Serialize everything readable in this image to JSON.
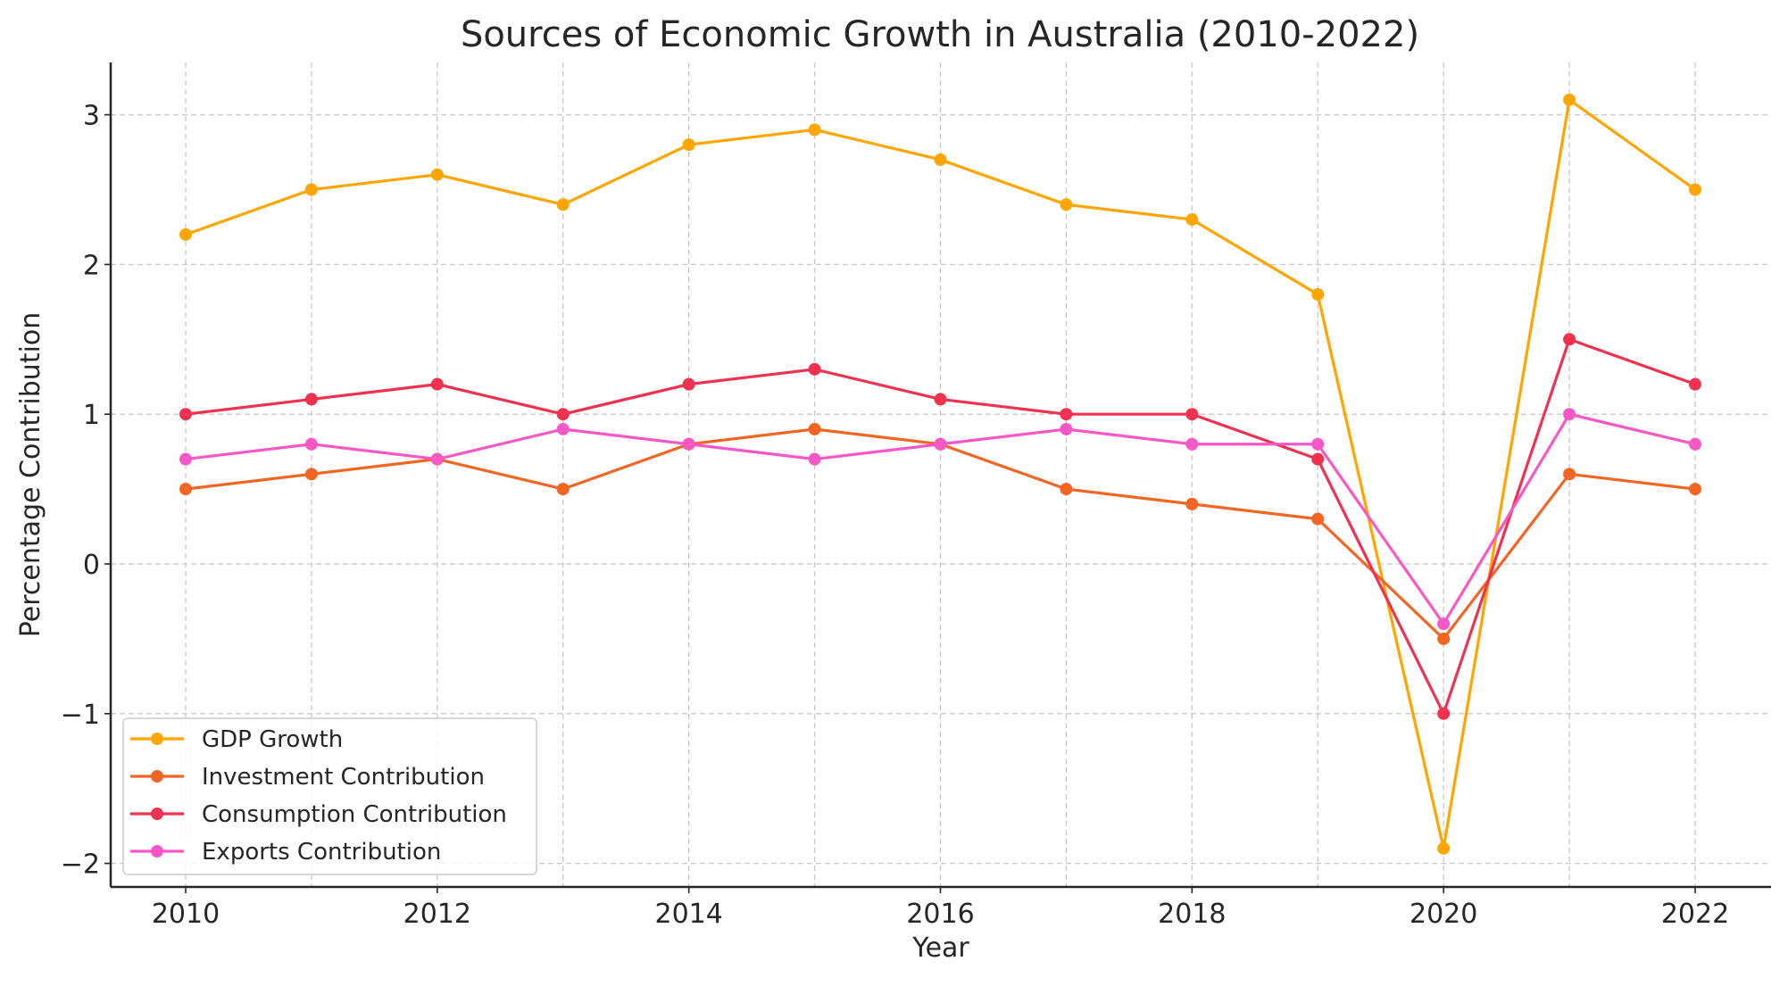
{
  "chart_data": {
    "type": "line",
    "title": "Sources of Economic Growth in Australia (2010-2022)",
    "xlabel": "Year",
    "ylabel": "Percentage Contribution",
    "x": [
      2010,
      2011,
      2012,
      2013,
      2014,
      2015,
      2016,
      2017,
      2018,
      2019,
      2020,
      2021,
      2022
    ],
    "xticks": [
      "2010",
      "2012",
      "2014",
      "2016",
      "2018",
      "2020",
      "2022"
    ],
    "yticks": [
      "−2",
      "−1",
      "0",
      "1",
      "2",
      "3"
    ],
    "xlim": [
      2009.38,
      2022.6
    ],
    "ylim": [
      -2.15,
      3.35
    ],
    "grid": true,
    "legend_position": "lower-left",
    "series": [
      {
        "name": "GDP Growth",
        "color": "#FFA500",
        "values": [
          2.2,
          2.5,
          2.6,
          2.4,
          2.8,
          2.9,
          2.7,
          2.4,
          2.3,
          1.8,
          -1.9,
          3.1,
          2.5
        ]
      },
      {
        "name": "Investment Contribution",
        "color": "#F26522",
        "values": [
          0.5,
          0.6,
          0.7,
          0.5,
          0.8,
          0.9,
          0.8,
          0.5,
          0.4,
          0.3,
          -0.5,
          0.6,
          0.5
        ]
      },
      {
        "name": "Consumption Contribution",
        "color": "#F03250",
        "values": [
          1.0,
          1.1,
          1.2,
          1.0,
          1.2,
          1.3,
          1.1,
          1.0,
          1.0,
          0.7,
          -1.0,
          1.5,
          1.2
        ]
      },
      {
        "name": "Exports Contribution",
        "color": "#F857C6",
        "values": [
          0.7,
          0.8,
          0.7,
          0.9,
          0.8,
          0.7,
          0.8,
          0.9,
          0.8,
          0.8,
          -0.4,
          1.0,
          0.8
        ]
      }
    ]
  }
}
